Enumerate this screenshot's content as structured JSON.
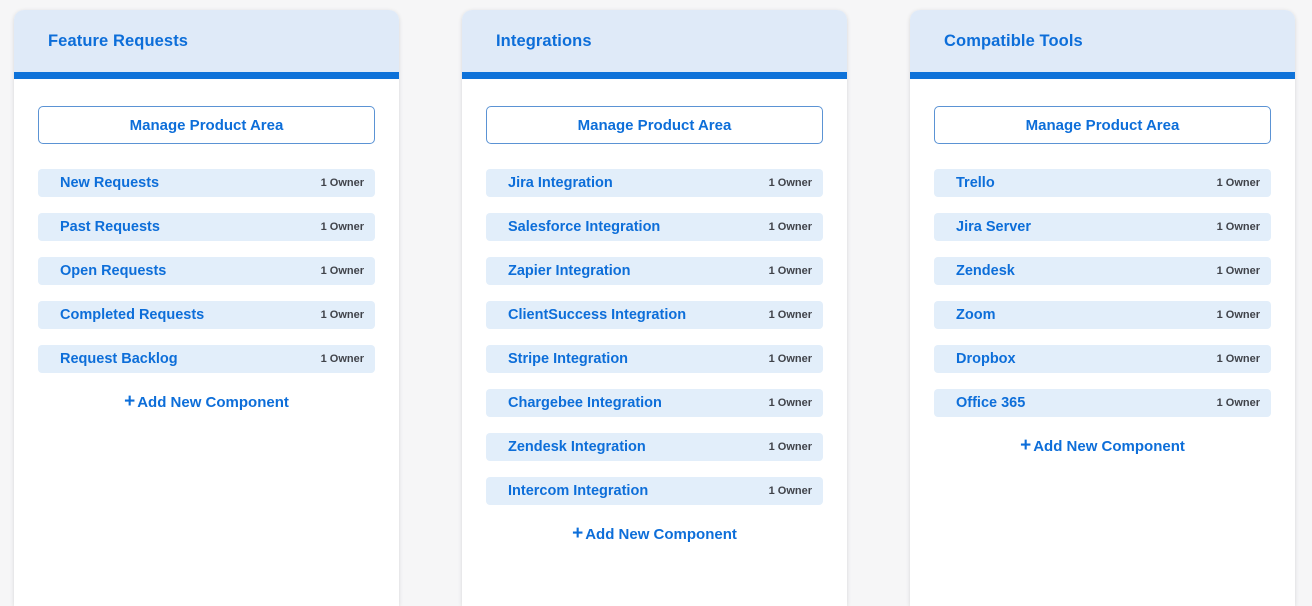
{
  "colors": {
    "page_background": "#f6f6f7",
    "card_background": "#ffffff",
    "header_background": "#dfeaf8",
    "accent_bar": "#0e72d9",
    "link_blue": "#0d6ed9",
    "button_border": "#5b93d4",
    "item_background": "#e2eefa",
    "owner_text": "#40434a"
  },
  "icons": {
    "plus": "+"
  },
  "cards": [
    {
      "title": "Feature Requests",
      "manage_button_label": "Manage Product Area",
      "add_component_label": "Add New Component",
      "items": [
        {
          "name": "New Requests",
          "owner": "1 Owner"
        },
        {
          "name": "Past Requests",
          "owner": "1 Owner"
        },
        {
          "name": "Open Requests",
          "owner": "1 Owner"
        },
        {
          "name": "Completed Requests",
          "owner": "1 Owner"
        },
        {
          "name": "Request Backlog",
          "owner": "1 Owner"
        }
      ]
    },
    {
      "title": "Integrations",
      "manage_button_label": "Manage Product Area",
      "add_component_label": "Add New Component",
      "items": [
        {
          "name": "Jira Integration",
          "owner": "1 Owner"
        },
        {
          "name": "Salesforce Integration",
          "owner": "1 Owner"
        },
        {
          "name": "Zapier Integration",
          "owner": "1 Owner"
        },
        {
          "name": "ClientSuccess Integration",
          "owner": "1 Owner"
        },
        {
          "name": "Stripe Integration",
          "owner": "1 Owner"
        },
        {
          "name": "Chargebee Integration",
          "owner": "1 Owner"
        },
        {
          "name": "Zendesk Integration",
          "owner": "1 Owner"
        },
        {
          "name": "Intercom Integration",
          "owner": "1 Owner"
        }
      ]
    },
    {
      "title": "Compatible Tools",
      "manage_button_label": "Manage Product Area",
      "add_component_label": "Add New Component",
      "items": [
        {
          "name": "Trello",
          "owner": "1 Owner"
        },
        {
          "name": "Jira Server",
          "owner": "1 Owner"
        },
        {
          "name": "Zendesk",
          "owner": "1 Owner"
        },
        {
          "name": "Zoom",
          "owner": "1 Owner"
        },
        {
          "name": "Dropbox",
          "owner": "1 Owner"
        },
        {
          "name": "Office 365",
          "owner": "1 Owner"
        }
      ]
    }
  ]
}
